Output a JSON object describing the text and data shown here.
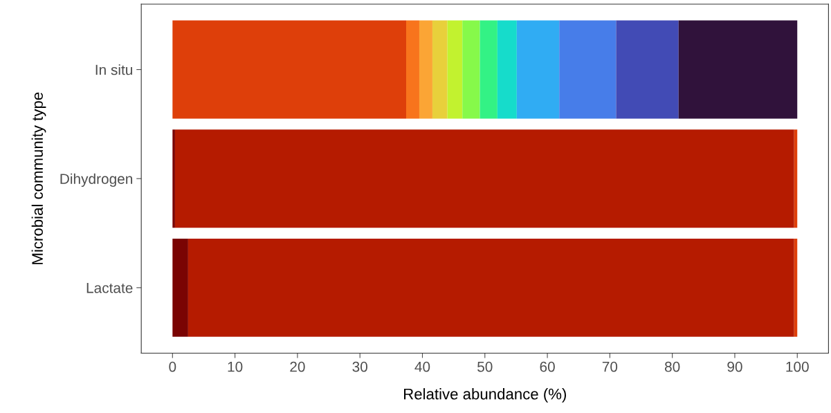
{
  "chart_data": {
    "type": "bar",
    "orientation": "horizontal",
    "stacked": true,
    "xlabel": "Relative abundance (%)",
    "ylabel": "Microbial community type",
    "categories": [
      "In situ",
      "Dihydrogen",
      "Lactate"
    ],
    "series": [
      {
        "color": "#7a0403",
        "values": [
          0,
          0.4,
          2.5
        ]
      },
      {
        "color": "#b51b00",
        "values": [
          0,
          99.1,
          97.0
        ]
      },
      {
        "color": "#de3f0a",
        "values": [
          37.4,
          0.5,
          0.5
        ]
      },
      {
        "color": "#f8741c",
        "values": [
          2.1,
          0,
          0
        ]
      },
      {
        "color": "#fba535",
        "values": [
          2.1,
          0,
          0
        ]
      },
      {
        "color": "#e8d03b",
        "values": [
          2.4,
          0,
          0
        ]
      },
      {
        "color": "#c2f22f",
        "values": [
          2.4,
          0,
          0
        ]
      },
      {
        "color": "#86f94a",
        "values": [
          2.8,
          0,
          0
        ]
      },
      {
        "color": "#33f285",
        "values": [
          2.8,
          0,
          0
        ]
      },
      {
        "color": "#16dccb",
        "values": [
          3.1,
          0,
          0
        ]
      },
      {
        "color": "#30acf3",
        "values": [
          6.8,
          0,
          0
        ]
      },
      {
        "color": "#477de9",
        "values": [
          9.1,
          0,
          0
        ]
      },
      {
        "color": "#424bb5",
        "values": [
          10.0,
          0,
          0
        ]
      },
      {
        "color": "#30123b",
        "values": [
          19.0,
          0,
          0
        ]
      }
    ],
    "xlim": [
      -5,
      105
    ],
    "xticks": [
      0,
      10,
      20,
      30,
      40,
      50,
      60,
      70,
      80,
      90,
      100
    ],
    "grid": false
  }
}
